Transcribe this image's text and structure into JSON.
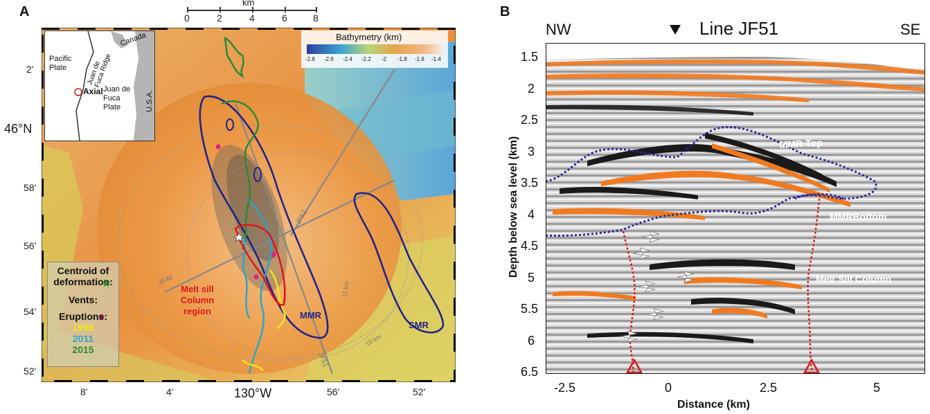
{
  "panel_a": {
    "label": "A",
    "scale_bar": {
      "unit": "km",
      "ticks": [
        "0",
        "2",
        "4",
        "6",
        "8"
      ]
    },
    "lat_labels": [
      "2'",
      "46°N",
      "58'",
      "56'",
      "54'",
      "52'"
    ],
    "lon_labels": [
      "8'",
      "4'",
      "130°W",
      "56'",
      "52'"
    ],
    "bathymetry_legend": {
      "title": "Bathymetry (km)",
      "ticks": [
        "-2.8",
        "-2.6",
        "-2.4",
        "-2.2",
        "-2",
        "-1.8",
        "-1.6",
        "-1.4"
      ]
    },
    "inset": {
      "labels": [
        "Canada",
        "Pacific Plate",
        "Juan de Fuca Ridge",
        "Juan de Fuca Plate",
        "Axial",
        "U.S.A."
      ]
    },
    "map_labels": {
      "melt_sill": "Melt sill Column region",
      "mmr": "MMR",
      "smr": "SMR",
      "jf48": "JF48",
      "jf51": "JF51",
      "jf52": "JF52",
      "km10": "10 km",
      "km11": "11 km"
    },
    "legend": {
      "centroid": "Centroid of deformation:",
      "vents": "Vents:",
      "eruptions": "Eruptions:",
      "years": [
        "1998",
        "2011",
        "2015"
      ]
    },
    "colors": {
      "year_1998": "#f1e51d",
      "year_2011": "#2aa6c7",
      "year_2015": "#2a8a35",
      "mmr_outline": "#22228a",
      "melt_region": "#e01818"
    }
  },
  "panel_b": {
    "label": "B",
    "title": "Line JF51",
    "left_dir": "NW",
    "right_dir": "SE",
    "ylabel": "Depth below sea level (km)",
    "xlabel": "Distance (km)",
    "y_ticks": [
      "1.5",
      "2",
      "2.5",
      "3",
      "3.5",
      "4",
      "4.5",
      "5",
      "5.5",
      "6",
      "6.5"
    ],
    "x_ticks": [
      "-2.5",
      "0",
      "2.5",
      "5"
    ],
    "annotations": {
      "mmr_top": "MMR Top",
      "mmr_bottom": "MMRBottom",
      "melt_column": "Melt Sill Column"
    },
    "colors": {
      "horizon": "#2a2a9a",
      "column": "#e01818",
      "bar": "#e0207a",
      "reflector": "#f07a20"
    }
  }
}
